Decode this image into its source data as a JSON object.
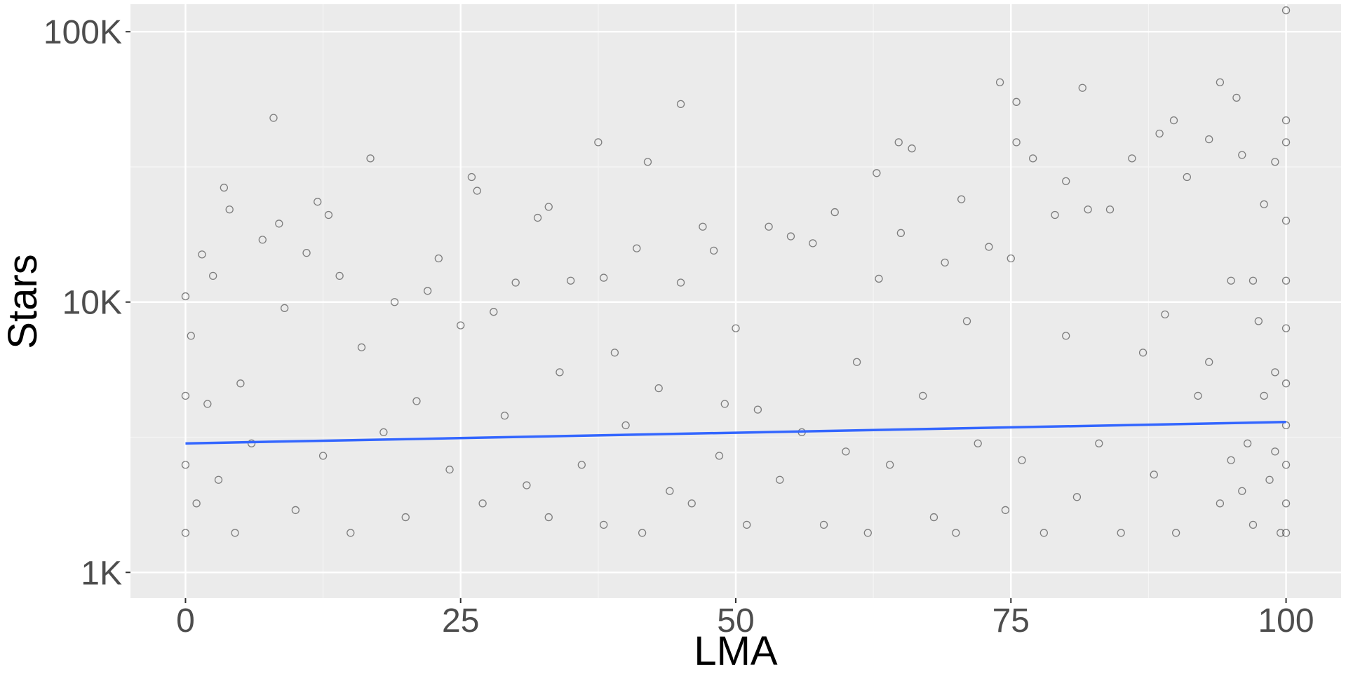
{
  "chart_data": {
    "type": "scatter",
    "x_label": "LMA",
    "y_label": "Stars",
    "x": [
      0,
      0,
      0,
      0,
      0.5,
      1,
      1.5,
      2,
      2.5,
      3,
      3.5,
      4,
      4.5,
      5,
      6,
      7,
      8,
      8.5,
      9,
      10,
      11,
      12,
      12.5,
      13,
      14,
      15,
      16,
      16.8,
      18,
      19,
      20,
      21,
      22,
      23,
      24,
      25,
      26,
      26.5,
      27,
      28,
      29,
      30,
      31,
      32,
      33,
      33,
      34,
      35,
      36,
      37.5,
      38,
      38,
      39,
      40,
      41,
      41.5,
      42,
      43,
      44,
      45,
      45,
      46,
      47,
      48,
      48.5,
      49,
      50,
      51,
      52,
      53,
      54,
      55,
      56,
      57,
      58,
      59,
      60,
      61,
      62,
      62.8,
      63,
      64,
      64.8,
      65,
      66,
      67,
      68,
      69,
      70,
      70.5,
      71,
      72,
      73,
      74,
      74.5,
      75,
      75.5,
      75.5,
      76,
      77,
      78,
      79,
      80,
      80,
      81,
      81.5,
      82,
      83,
      84,
      85,
      86,
      87,
      88,
      88.5,
      89,
      89.8,
      90,
      91,
      92,
      93,
      94,
      94,
      95,
      95.5,
      96,
      96.5,
      97,
      97.5,
      98,
      98.5,
      99,
      99,
      99.5,
      100,
      100,
      100,
      100,
      100,
      100,
      100,
      100,
      100,
      100,
      100,
      97,
      96,
      99,
      98,
      95,
      93
    ],
    "values": [
      10500,
      4500,
      2500,
      1400,
      7500,
      1800,
      15000,
      4200,
      12500,
      2200,
      26500,
      22000,
      1400,
      5000,
      3000,
      17000,
      48000,
      19500,
      9500,
      1700,
      15200,
      23500,
      2700,
      21000,
      12500,
      1400,
      6800,
      34000,
      3300,
      10000,
      1600,
      4300,
      11000,
      14500,
      2400,
      8200,
      29000,
      25800,
      1800,
      9200,
      3800,
      11800,
      2100,
      20500,
      22500,
      1600,
      5500,
      12000,
      2500,
      39000,
      12300,
      1500,
      6500,
      3500,
      15800,
      1400,
      33000,
      4800,
      2000,
      54000,
      11800,
      1800,
      19000,
      15500,
      2700,
      4200,
      8000,
      1500,
      4000,
      19000,
      2200,
      17500,
      3300,
      16500,
      1500,
      21500,
      2800,
      6000,
      1400,
      30000,
      12200,
      2500,
      39000,
      18000,
      37000,
      4500,
      1600,
      14000,
      1400,
      24000,
      8500,
      3000,
      16000,
      65000,
      1700,
      14500,
      55000,
      39000,
      2600,
      34000,
      1400,
      21000,
      28000,
      7500,
      1900,
      62000,
      22000,
      3000,
      22000,
      1400,
      34000,
      6500,
      2300,
      42000,
      9000,
      47000,
      1400,
      29000,
      4500,
      40000,
      65000,
      1800,
      12000,
      57000,
      35000,
      3000,
      1500,
      8500,
      23000,
      2200,
      33000,
      5500,
      1400,
      120000,
      47000,
      39000,
      20000,
      12000,
      8000,
      5000,
      3500,
      2500,
      1800,
      1400,
      12000,
      2000,
      2800,
      4500,
      2600,
      6000
    ],
    "color": "#333333",
    "fit": {
      "x": [
        0,
        100
      ],
      "values": [
        3000,
        3600
      ],
      "color": "#3366ff"
    },
    "xlim": [
      -5,
      105
    ],
    "xticks": [
      0,
      25,
      50,
      75,
      100
    ],
    "ylim": [
      803,
      126400
    ],
    "log_y": true,
    "yticks": [
      {
        "value": 1000,
        "label": "1K"
      },
      {
        "value": 10000,
        "label": "10K"
      },
      {
        "value": 100000,
        "label": "100K"
      }
    ],
    "grid": true
  }
}
